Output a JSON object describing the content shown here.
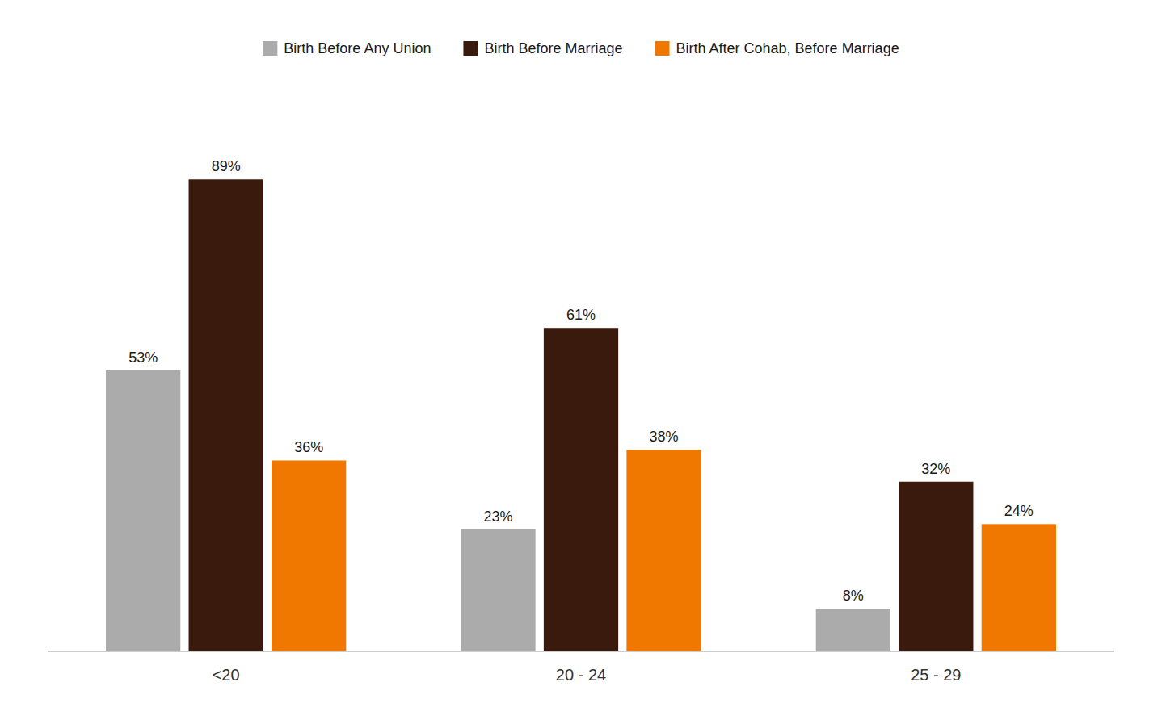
{
  "chart_data": {
    "type": "bar",
    "categories": [
      "<20",
      "20 - 24",
      "25 - 29"
    ],
    "series": [
      {
        "name": "Birth Before Any Union",
        "color": "#ABABAB",
        "values": [
          53,
          23,
          8
        ],
        "value_labels": [
          "53%",
          "23%",
          "8%"
        ]
      },
      {
        "name": "Birth Before Marriage",
        "color": "#3B1A0E",
        "values": [
          89,
          61,
          32
        ],
        "value_labels": [
          "89%",
          "61%",
          "32%"
        ]
      },
      {
        "name": "Birth After Cohab, Before Marriage",
        "color": "#F07800",
        "values": [
          36,
          38,
          24
        ],
        "value_labels": [
          "36%",
          "38%",
          "24%"
        ]
      }
    ],
    "ylim": [
      0,
      100
    ],
    "data_labels": true,
    "tick_labels": "x",
    "grid": false,
    "legend": "top"
  }
}
